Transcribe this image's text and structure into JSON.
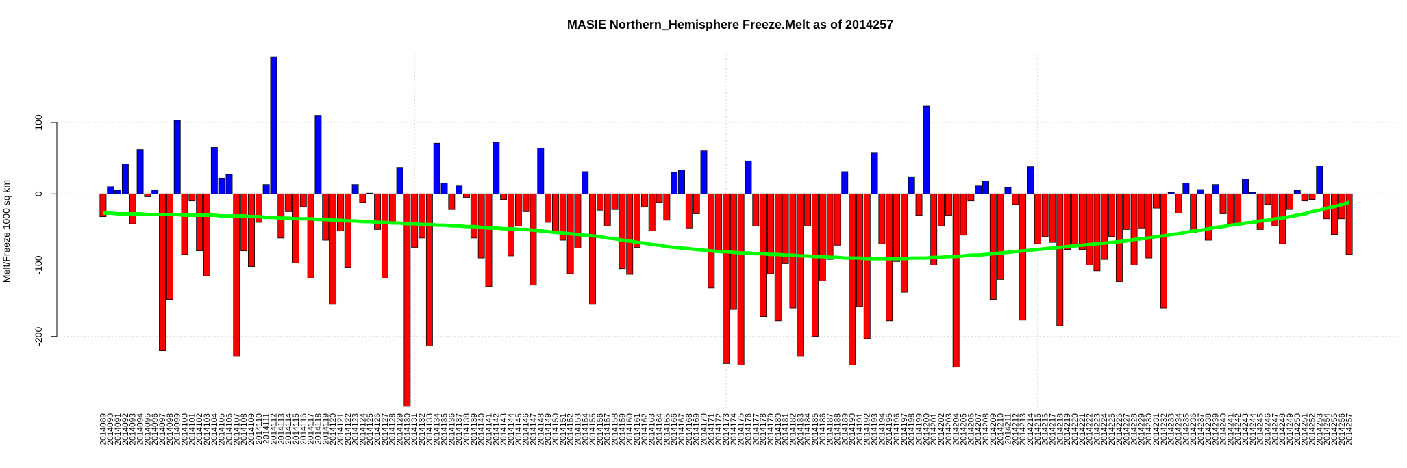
{
  "chart_data": {
    "type": "bar",
    "title": "MASIE Northern_Hemisphere Freeze.Melt as of 2014257",
    "ylabel": "Melt/Freeze 1000 sq km",
    "categories": [
      "2014089",
      "2014090",
      "2014091",
      "2014092",
      "2014093",
      "2014094",
      "2014095",
      "2014096",
      "2014097",
      "2014098",
      "2014099",
      "2014100",
      "2014101",
      "2014102",
      "2014103",
      "2014104",
      "2014105",
      "2014106",
      "2014107",
      "2014108",
      "2014109",
      "2014110",
      "2014111",
      "2014112",
      "2014113",
      "2014114",
      "2014115",
      "2014116",
      "2014117",
      "2014118",
      "2014119",
      "2014120",
      "2014121",
      "2014122",
      "2014123",
      "2014124",
      "2014125",
      "2014126",
      "2014127",
      "2014128",
      "2014129",
      "2014130",
      "2014131",
      "2014132",
      "2014133",
      "2014134",
      "2014135",
      "2014136",
      "2014137",
      "2014138",
      "2014139",
      "2014140",
      "2014141",
      "2014142",
      "2014143",
      "2014144",
      "2014145",
      "2014146",
      "2014147",
      "2014148",
      "2014149",
      "2014150",
      "2014151",
      "2014152",
      "2014153",
      "2014154",
      "2014155",
      "2014156",
      "2014157",
      "2014158",
      "2014159",
      "2014160",
      "2014161",
      "2014162",
      "2014163",
      "2014164",
      "2014165",
      "2014166",
      "2014167",
      "2014168",
      "2014169",
      "2014170",
      "2014171",
      "2014172",
      "2014173",
      "2014174",
      "2014175",
      "2014176",
      "2014177",
      "2014178",
      "2014179",
      "2014180",
      "2014181",
      "2014182",
      "2014183",
      "2014184",
      "2014185",
      "2014186",
      "2014187",
      "2014188",
      "2014189",
      "2014190",
      "2014191",
      "2014192",
      "2014193",
      "2014194",
      "2014195",
      "2014196",
      "2014197",
      "2014198",
      "2014199",
      "2014200",
      "2014201",
      "2014202",
      "2014203",
      "2014204",
      "2014205",
      "2014206",
      "2014207",
      "2014208",
      "2014209",
      "2014210",
      "2014211",
      "2014212",
      "2014213",
      "2014214",
      "2014215",
      "2014216",
      "2014217",
      "2014218",
      "2014219",
      "2014220",
      "2014221",
      "2014222",
      "2014223",
      "2014224",
      "2014225",
      "2014226",
      "2014227",
      "2014228",
      "2014229",
      "2014230",
      "2014231",
      "2014232",
      "2014233",
      "2014234",
      "2014235",
      "2014236",
      "2014237",
      "2014238",
      "2014239",
      "2014240",
      "2014241",
      "2014242",
      "2014243",
      "2014244",
      "2014245",
      "2014246",
      "2014247",
      "2014248",
      "2014249",
      "2014250",
      "2014251",
      "2014252",
      "2014253",
      "2014254",
      "2014255",
      "2014256",
      "2014257"
    ],
    "values": [
      -32,
      10,
      5,
      42,
      -42,
      62,
      -4,
      5,
      -220,
      -148,
      103,
      -85,
      -10,
      -80,
      -115,
      65,
      22,
      27,
      -228,
      -80,
      -102,
      -40,
      13,
      192,
      -62,
      -25,
      -97,
      -18,
      -118,
      110,
      -65,
      -155,
      -52,
      -103,
      13,
      -12,
      1,
      -50,
      -118,
      -40,
      37,
      -298,
      -75,
      -62,
      -213,
      71,
      15,
      -22,
      11,
      -5,
      -62,
      -90,
      -130,
      72,
      -8,
      -87,
      -45,
      -25,
      -128,
      64,
      -40,
      -55,
      -65,
      -112,
      -76,
      31,
      -155,
      -23,
      -45,
      -22,
      -105,
      -113,
      -75,
      -18,
      -52,
      -12,
      -37,
      30,
      33,
      -48,
      -28,
      61,
      -132,
      -80,
      -238,
      -162,
      -240,
      46,
      -45,
      -172,
      -112,
      -178,
      -98,
      -160,
      -228,
      -45,
      -200,
      -122,
      -92,
      -72,
      31,
      -240,
      -158,
      -203,
      58,
      -70,
      -178,
      -95,
      -138,
      24,
      -30,
      123,
      -100,
      -45,
      -30,
      -243,
      -58,
      -10,
      11,
      18,
      -148,
      -120,
      9,
      -15,
      -177,
      38,
      -70,
      -60,
      -68,
      -185,
      -78,
      -70,
      -78,
      -100,
      -108,
      -92,
      -60,
      -123,
      -50,
      -100,
      -48,
      -90,
      -20,
      -160,
      2,
      -27,
      15,
      -55,
      6,
      -65,
      13,
      -28,
      -42,
      -43,
      21,
      2,
      -50,
      -15,
      -45,
      -70,
      -22,
      5,
      -10,
      -8,
      39,
      -35,
      -57,
      -35,
      -85
    ],
    "positive_color": "#0000ff",
    "negative_color": "#ff0000",
    "trend": {
      "color": "#00ff00",
      "values": [
        -27,
        -27,
        -28,
        -28,
        -28,
        -28,
        -29,
        -29,
        -29,
        -29,
        -29,
        -30,
        -30,
        -30,
        -30,
        -30,
        -31,
        -31,
        -31,
        -31,
        -32,
        -32,
        -33,
        -33,
        -34,
        -34,
        -35,
        -35,
        -35,
        -36,
        -36,
        -37,
        -37,
        -38,
        -38,
        -39,
        -39,
        -40,
        -40,
        -41,
        -41,
        -42,
        -42,
        -43,
        -43,
        -44,
        -44,
        -45,
        -45,
        -46,
        -46,
        -47,
        -48,
        -48,
        -49,
        -49,
        -50,
        -50,
        -51,
        -52,
        -53,
        -54,
        -55,
        -56,
        -57,
        -58,
        -59,
        -60,
        -62,
        -63,
        -65,
        -66,
        -68,
        -69,
        -71,
        -72,
        -74,
        -75,
        -76,
        -77,
        -78,
        -79,
        -80,
        -81,
        -81,
        -82,
        -83,
        -83,
        -84,
        -84,
        -85,
        -85,
        -86,
        -86,
        -87,
        -87,
        -88,
        -88,
        -89,
        -89,
        -90,
        -90,
        -90,
        -91,
        -91,
        -91,
        -91,
        -91,
        -91,
        -90,
        -90,
        -90,
        -89,
        -89,
        -88,
        -88,
        -87,
        -86,
        -86,
        -85,
        -84,
        -83,
        -82,
        -81,
        -80,
        -79,
        -78,
        -77,
        -76,
        -75,
        -74,
        -73,
        -72,
        -71,
        -70,
        -69,
        -68,
        -67,
        -66,
        -64,
        -63,
        -62,
        -60,
        -59,
        -57,
        -56,
        -54,
        -52,
        -51,
        -49,
        -47,
        -46,
        -44,
        -43,
        -41,
        -40,
        -38,
        -37,
        -35,
        -34,
        -32,
        -30,
        -28,
        -25,
        -23,
        -20,
        -18,
        -15,
        -12
      ]
    },
    "ylim": [
      -300,
      195
    ],
    "yticks": [
      -200,
      -100,
      0,
      100
    ],
    "grid": true
  }
}
